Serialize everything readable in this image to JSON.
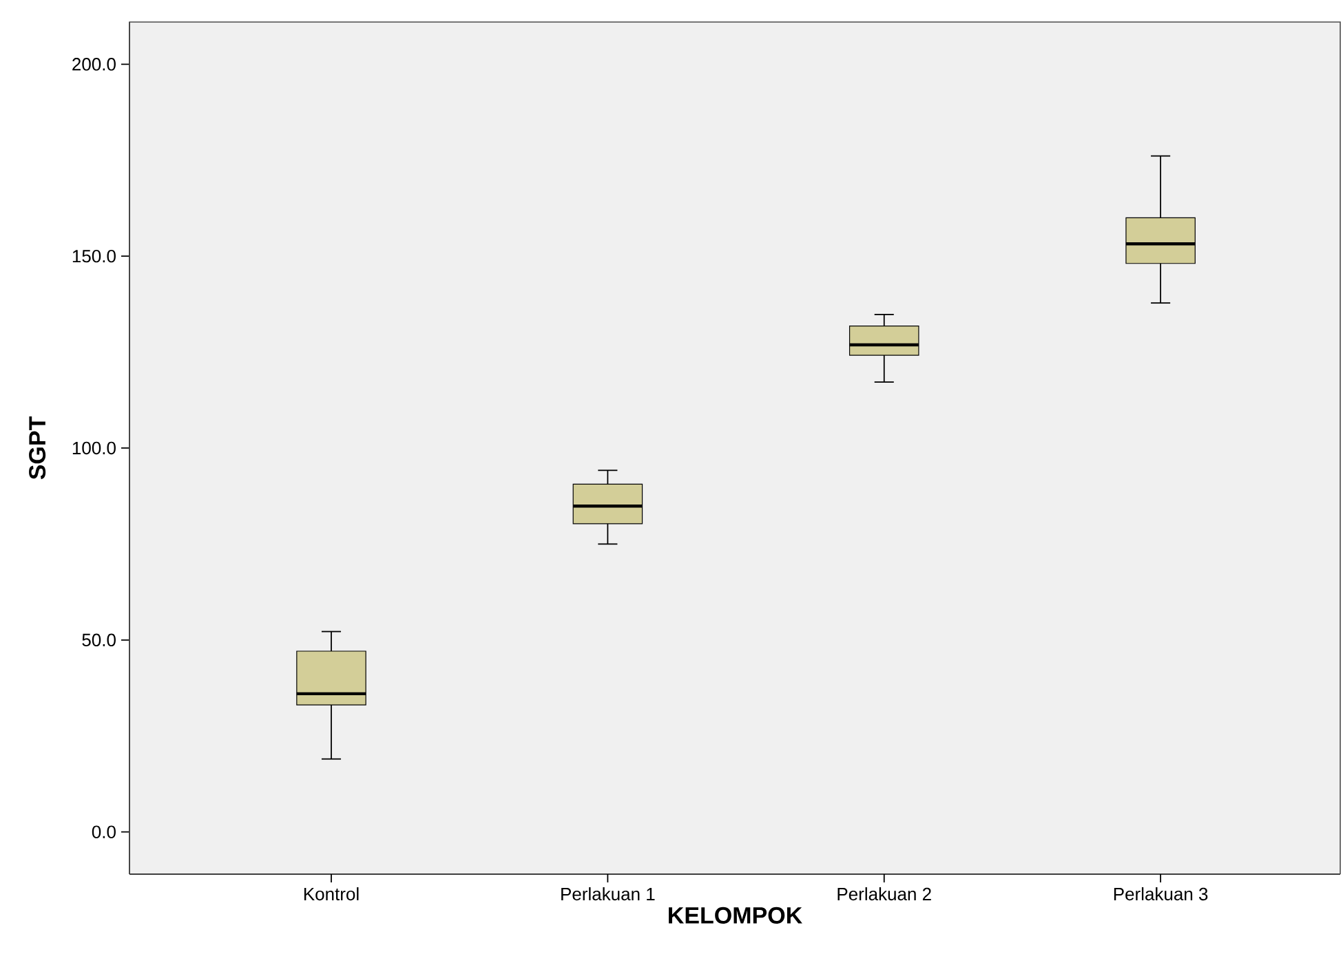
{
  "chart_data": {
    "type": "box",
    "xlabel": "KELOMPOK",
    "ylabel": "SGPT",
    "categories": [
      "Kontrol",
      "Perlakuan 1",
      "Perlakuan 2",
      "Perlakuan 3"
    ],
    "color": "#d3ce98",
    "boxes": [
      {
        "low": 19.0,
        "q1": 33.1,
        "median": 36.0,
        "q3": 47.1,
        "high": 52.2
      },
      {
        "low": 75.0,
        "q1": 80.3,
        "median": 84.9,
        "q3": 90.6,
        "high": 94.2
      },
      {
        "low": 117.2,
        "q1": 124.2,
        "median": 126.9,
        "q3": 131.8,
        "high": 134.8
      },
      {
        "low": 137.8,
        "q1": 148.1,
        "median": 153.2,
        "q3": 160.0,
        "high": 176.1
      }
    ],
    "ylim": [
      -11,
      211
    ],
    "yticks": [
      {
        "value": 0,
        "label": "0.0"
      },
      {
        "value": 50,
        "label": "50.0"
      },
      {
        "value": 100,
        "label": "100.0"
      },
      {
        "value": 150,
        "label": "150.0"
      },
      {
        "value": 200,
        "label": "200.0"
      }
    ],
    "grid": false
  }
}
